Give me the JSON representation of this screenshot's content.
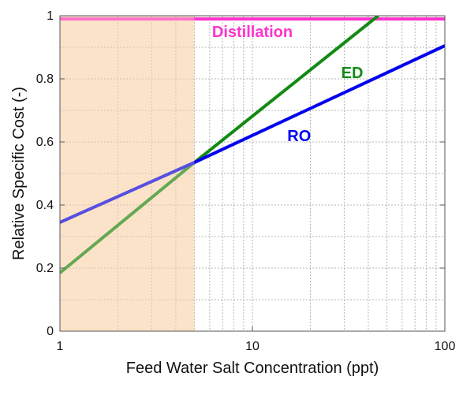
{
  "chart_data": {
    "type": "line",
    "title": "",
    "xlabel": "Feed Water Salt Concentration (ppt)",
    "ylabel": "Relative Specific Cost (-)",
    "xscale": "log",
    "xlim": [
      1,
      100
    ],
    "ylim": [
      0,
      1
    ],
    "x_ticks": [
      1,
      10,
      100
    ],
    "x_tick_labels": [
      "1",
      "10",
      "100"
    ],
    "y_ticks": [
      0,
      0.2,
      0.4,
      0.6,
      0.8,
      1
    ],
    "y_tick_labels": [
      "0",
      "0.2",
      "0.4",
      "0.6",
      "0.8",
      "1"
    ],
    "grid": true,
    "shaded_region": {
      "x": [
        1,
        5
      ],
      "color": "#fbe3c9"
    },
    "series": [
      {
        "name": "Distillation",
        "color": "#ff33cc",
        "x": [
          1,
          100
        ],
        "y": [
          0.99,
          0.99
        ],
        "label_at": [
          10,
          0.95
        ]
      },
      {
        "name": "ED",
        "color": "#138a13",
        "x": [
          1,
          5,
          45
        ],
        "y": [
          0.185,
          0.535,
          1.0
        ],
        "label_at": [
          33,
          0.82
        ]
      },
      {
        "name": "RO",
        "color": "#0000ee",
        "x": [
          1,
          5,
          100
        ],
        "y": [
          0.345,
          0.535,
          0.905
        ],
        "label_at": [
          17.5,
          0.62
        ]
      }
    ]
  }
}
